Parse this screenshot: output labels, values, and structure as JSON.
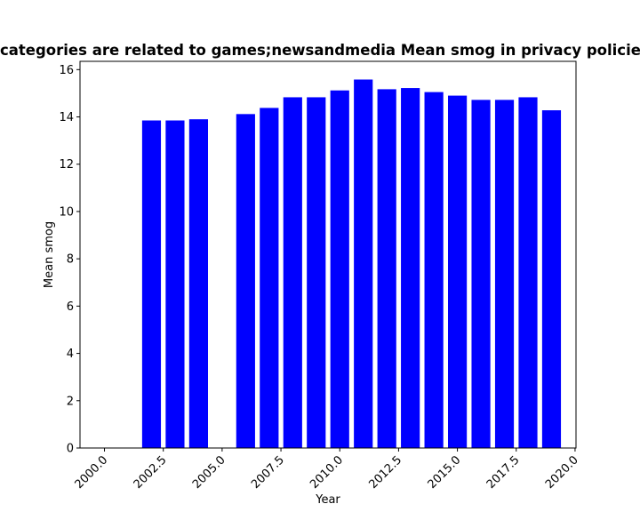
{
  "chart_data": {
    "type": "bar",
    "title": "categories are related to games;newsandmedia Mean smog in privacy policies",
    "xlabel": "Year",
    "ylabel": "Mean smog",
    "x": [
      2002,
      2003,
      2004,
      2006,
      2007,
      2008,
      2009,
      2010,
      2011,
      2012,
      2013,
      2014,
      2015,
      2016,
      2017,
      2018,
      2019
    ],
    "values": [
      13.85,
      13.85,
      13.9,
      14.12,
      14.38,
      14.83,
      14.83,
      15.12,
      15.58,
      15.17,
      15.22,
      15.05,
      14.9,
      14.72,
      14.72,
      14.83,
      14.28
    ],
    "xlim": [
      1998.96,
      2020.04
    ],
    "ylim": [
      0,
      16.35
    ],
    "xticks": [
      2000,
      2002.5,
      2005,
      2007.5,
      2010,
      2012.5,
      2015,
      2017.5,
      2020
    ],
    "xtick_labels": [
      "2000.0",
      "2002.5",
      "2005.0",
      "2007.5",
      "2010.0",
      "2012.5",
      "2015.0",
      "2017.5",
      "2020.0"
    ],
    "yticks": [
      0,
      2,
      4,
      6,
      8,
      10,
      12,
      14,
      16
    ],
    "ytick_labels": [
      "0",
      "2",
      "4",
      "6",
      "8",
      "10",
      "12",
      "14",
      "16"
    ],
    "bar_width": 0.8,
    "bar_color": "#0000ff",
    "grid": false,
    "legend": false
  }
}
